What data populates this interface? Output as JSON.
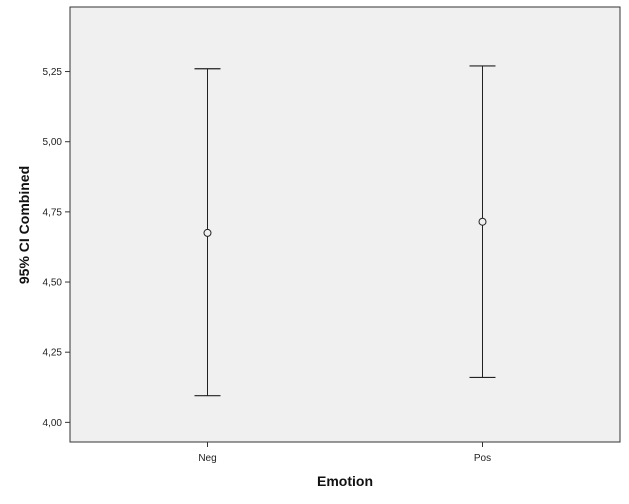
{
  "chart_data": {
    "type": "errorbar",
    "categories": [
      "Neg",
      "Pos"
    ],
    "series": [
      {
        "means": [
          4.675,
          4.715
        ],
        "lower": [
          4.095,
          4.16
        ],
        "upper": [
          5.26,
          5.27
        ]
      }
    ],
    "xlabel": "Emotion",
    "ylabel": "95% CI Combined",
    "ylim": [
      3.93,
      5.48
    ],
    "yticks": [
      "4,00",
      "4,25",
      "4,50",
      "4,75",
      "5,00",
      "5,25"
    ],
    "ytick_values": [
      4.0,
      4.25,
      4.5,
      4.75,
      5.0,
      5.25
    ],
    "grid": false,
    "colors": {
      "plot_background": "#f0f0f0",
      "frame": "#333333",
      "marks": "#222222"
    }
  }
}
